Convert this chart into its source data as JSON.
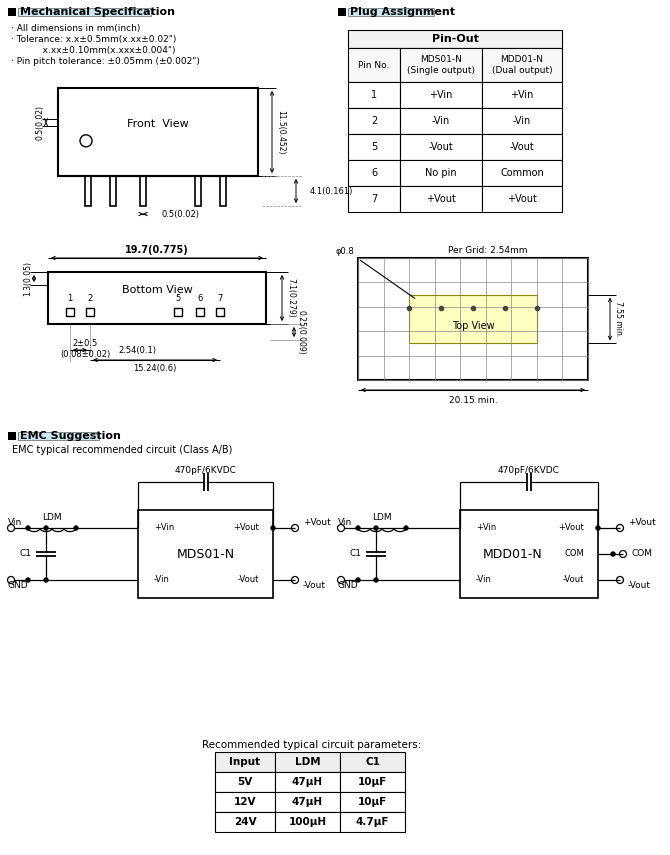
{
  "bg_color": "#ffffff",
  "section1_title": "Mechanical Specification",
  "section2_title": "Plug Assignment",
  "section3_title": "EMC Suggestion",
  "mech_notes": [
    "· All dimensions in mm(inch)",
    "· Tolerance: x.x±0.5mm(x.xx±0.02\")",
    "           x.xx±0.10mm(x.xxx±0.004\")",
    "· Pin pitch tolerance: ±0.05mm (±0.002\")"
  ],
  "pinout_header": "Pin-Out",
  "pinout_col1": "Pin No.",
  "pinout_col2": "MDS01-N\n(Single output)",
  "pinout_col3": "MDD01-N\n(Dual output)",
  "pinout_rows": [
    [
      "1",
      "+Vin",
      "+Vin"
    ],
    [
      "2",
      "-Vin",
      "-Vin"
    ],
    [
      "5",
      "-Vout",
      "-Vout"
    ],
    [
      "6",
      "No pin",
      "Common"
    ],
    [
      "7",
      "+Vout",
      "+Vout"
    ]
  ],
  "emc_subtitle": "EMC typical recommended circuit (Class A/B)",
  "emc_cap_label": "470pF/6KVDC",
  "param_table_title": "Recommended typical circuit parameters:",
  "param_headers": [
    "Input",
    "LDM",
    "C1"
  ],
  "param_rows": [
    [
      "5V",
      "47μH",
      "10μF"
    ],
    [
      "12V",
      "47μH",
      "10μF"
    ],
    [
      "24V",
      "100μH",
      "4.7μF"
    ]
  ],
  "top_view_label": "Top View",
  "per_grid_label": "Per Grid: 2.54mm",
  "phi_label": "φ0.8",
  "dim_20_15": "20.15 min.",
  "dim_7_55": "7.55 min.",
  "front_view_label": "Front  View",
  "bottom_view_label": "Bottom View",
  "dim_19_7": "19.7(0.775)",
  "dim_11_5": "11.5(0.452)",
  "dim_4_1": "4.1(0.161)",
  "dim_0_5_front": "0.5(0.02)",
  "dim_0_5_side": "0.5(0.02)",
  "dim_7_1": "7.1(0.279)",
  "dim_1_3": "1.3(0.05)",
  "dim_2_54": "2.54(0.1)",
  "dim_15_24": "15.24(0.6)",
  "dim_2_05": "2±0.5\n(0.08±0.02)",
  "dim_0_25": "0.25(0.009)"
}
